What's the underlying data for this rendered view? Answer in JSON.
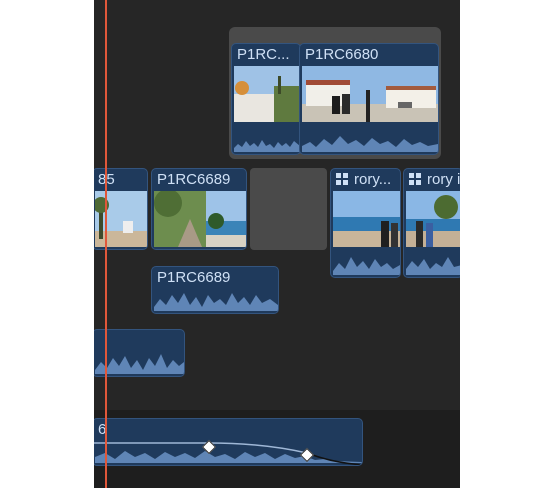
{
  "timeline": {
    "connected_clips": [
      {
        "label": "P1RC..."
      },
      {
        "label": "P1RC6680"
      }
    ],
    "primary_clips": [
      {
        "label": "85"
      },
      {
        "label": "P1RC6689"
      },
      {
        "label": "rory..."
      },
      {
        "label": "rory i"
      }
    ],
    "audio_clips": [
      {
        "label": "P1RC6689"
      },
      {
        "label": ""
      }
    ],
    "music_clip": {
      "label": "6"
    },
    "colors": {
      "background": "#262626",
      "clip_fill": "#1f3a5c",
      "clip_border": "#33547e",
      "playhead": "#e0573a",
      "gap": "#4a4a4a"
    }
  }
}
